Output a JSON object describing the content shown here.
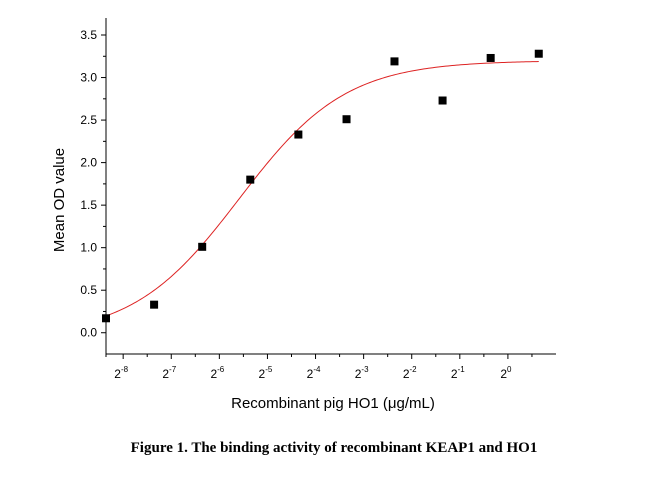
{
  "caption": "Figure 1. The binding activity of recombinant KEAP1 and HO1",
  "chart_data": {
    "type": "scatter",
    "xlabel": "Recombinant pig HO1 (μg/mL)",
    "ylabel": "Mean OD value",
    "x_scale": "log2",
    "x_ticks": [
      {
        "base": "2",
        "exp": "-8",
        "value": 0.00390625
      },
      {
        "base": "2",
        "exp": "-7",
        "value": 0.0078125
      },
      {
        "base": "2",
        "exp": "-6",
        "value": 0.015625
      },
      {
        "base": "2",
        "exp": "-5",
        "value": 0.03125
      },
      {
        "base": "2",
        "exp": "-4",
        "value": 0.0625
      },
      {
        "base": "2",
        "exp": "-3",
        "value": 0.125
      },
      {
        "base": "2",
        "exp": "-2",
        "value": 0.25
      },
      {
        "base": "2",
        "exp": "-1",
        "value": 0.5
      },
      {
        "base": "2",
        "exp": "0",
        "value": 1
      }
    ],
    "xlim": [
      0.00305,
      2.0
    ],
    "ylim": [
      -0.25,
      3.7
    ],
    "y_ticks": [
      "0.0",
      "0.5",
      "1.0",
      "1.5",
      "2.0",
      "2.5",
      "3.0",
      "3.5"
    ],
    "grid": false,
    "series": [
      {
        "marker": "square",
        "color": "#000000",
        "points": [
          {
            "x": 0.00305,
            "y": 0.17
          },
          {
            "x": 0.0061,
            "y": 0.33
          },
          {
            "x": 0.0122,
            "y": 1.01
          },
          {
            "x": 0.0244,
            "y": 1.8
          },
          {
            "x": 0.0488,
            "y": 2.33
          },
          {
            "x": 0.0977,
            "y": 2.51
          },
          {
            "x": 0.195,
            "y": 3.19
          },
          {
            "x": 0.39,
            "y": 2.73
          },
          {
            "x": 0.78,
            "y": 3.23
          },
          {
            "x": 1.56,
            "y": 3.28
          }
        ]
      }
    ],
    "fit_curve": {
      "type": "logistic",
      "color": "#dd2222",
      "bottom": -0.05,
      "top": 3.2,
      "ec50": 0.0208,
      "hill": 1.3,
      "x_range": [
        0.00305,
        1.56
      ]
    }
  }
}
